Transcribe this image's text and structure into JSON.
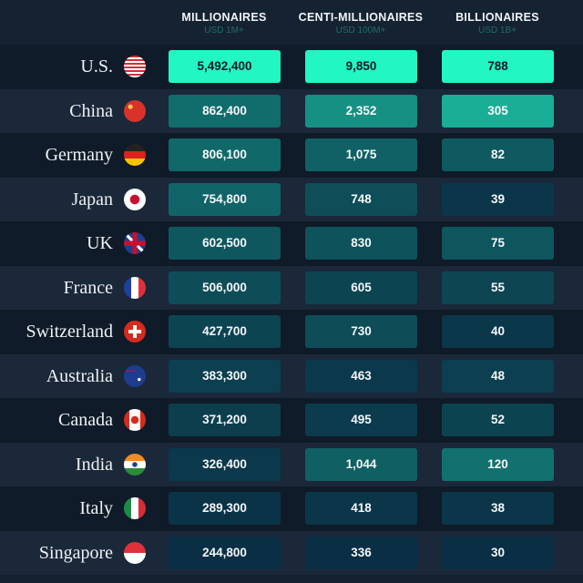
{
  "columns": [
    {
      "title": "MILLIONAIRES",
      "subtitle": "USD 1M+"
    },
    {
      "title": "CENTI-MILLIONAIRES",
      "subtitle": "USD 100M+"
    },
    {
      "title": "BILLIONAIRES",
      "subtitle": "USD 1B+"
    }
  ],
  "chart_data": {
    "type": "table",
    "columns": [
      "MILLIONAIRES",
      "CENTI-MILLIONAIRES",
      "BILLIONAIRES"
    ],
    "rows": [
      {
        "country": "U.S.",
        "flag": "us-flag",
        "values": [
          "5,492,400",
          "9,850",
          "788"
        ]
      },
      {
        "country": "China",
        "flag": "china-flag",
        "values": [
          "862,400",
          "2,352",
          "305"
        ]
      },
      {
        "country": "Germany",
        "flag": "germany-flag",
        "values": [
          "806,100",
          "1,075",
          "82"
        ]
      },
      {
        "country": "Japan",
        "flag": "japan-flag",
        "values": [
          "754,800",
          "748",
          "39"
        ]
      },
      {
        "country": "UK",
        "flag": "uk-flag",
        "values": [
          "602,500",
          "830",
          "75"
        ]
      },
      {
        "country": "France",
        "flag": "france-flag",
        "values": [
          "506,000",
          "605",
          "55"
        ]
      },
      {
        "country": "Switzerland",
        "flag": "switzerland-flag",
        "values": [
          "427,700",
          "730",
          "40"
        ]
      },
      {
        "country": "Australia",
        "flag": "australia-flag",
        "values": [
          "383,300",
          "463",
          "48"
        ]
      },
      {
        "country": "Canada",
        "flag": "canada-flag",
        "values": [
          "371,200",
          "495",
          "52"
        ]
      },
      {
        "country": "India",
        "flag": "india-flag",
        "values": [
          "326,400",
          "1,044",
          "120"
        ]
      },
      {
        "country": "Italy",
        "flag": "italy-flag",
        "values": [
          "289,300",
          "418",
          "38"
        ]
      },
      {
        "country": "Singapore",
        "flag": "singapore-flag",
        "values": [
          "244,800",
          "336",
          "30"
        ]
      }
    ]
  },
  "colors": {
    "low": "#0a2f45",
    "high": "#22f6c3"
  }
}
